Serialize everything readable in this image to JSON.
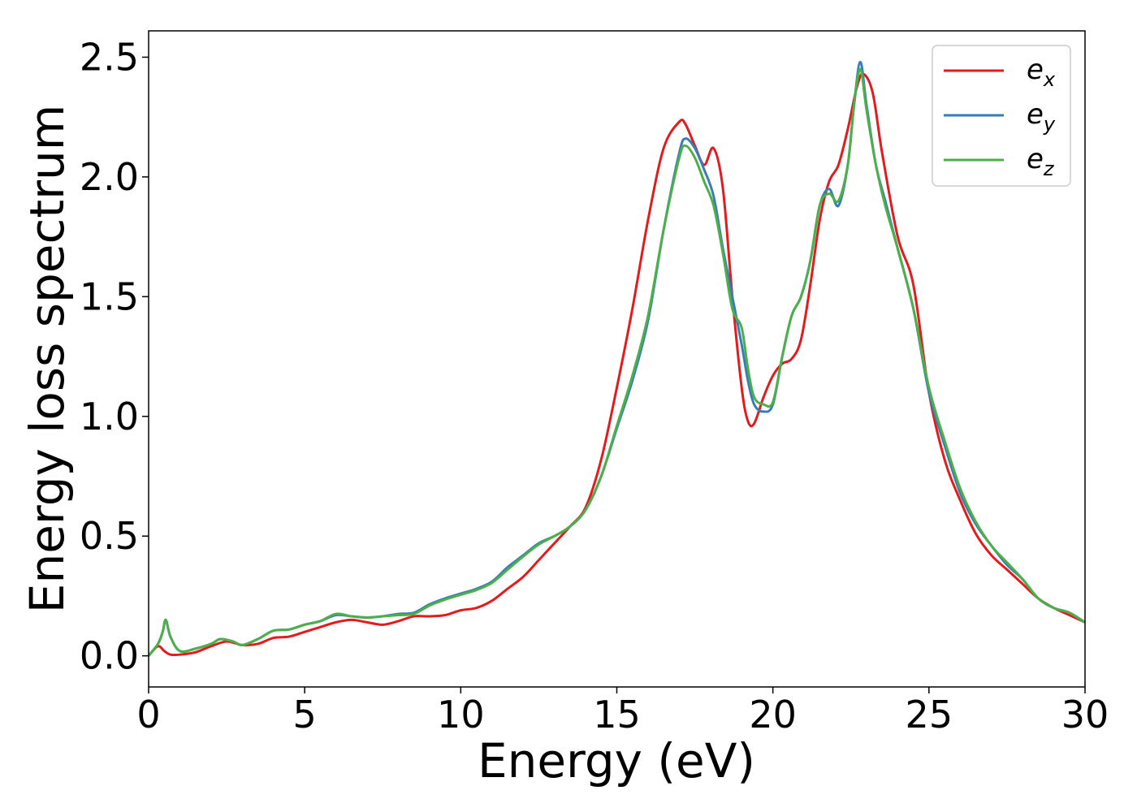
{
  "chart_data": {
    "type": "line",
    "xlabel": "Energy (eV)",
    "ylabel": "Energy loss spectrum",
    "xlim": [
      0,
      30
    ],
    "ylim": [
      -0.13,
      2.61
    ],
    "xticks": [
      "0",
      "5",
      "10",
      "15",
      "20",
      "25",
      "30"
    ],
    "yticks": [
      "0.0",
      "0.5",
      "1.0",
      "1.5",
      "2.0",
      "2.5"
    ],
    "grid": false,
    "legend_position": "top-right",
    "series": [
      {
        "name": "e",
        "subscript": "x",
        "color": "#e41a1c",
        "x": [
          0,
          0.3,
          0.5,
          0.7,
          1,
          1.5,
          2,
          2.5,
          3,
          3.5,
          4,
          4.5,
          5,
          5.5,
          6,
          6.5,
          7,
          7.5,
          8,
          8.5,
          9,
          9.5,
          10,
          10.5,
          11,
          11.5,
          12,
          12.5,
          13,
          13.5,
          14,
          14.5,
          15,
          15.5,
          16,
          16.5,
          17,
          17.2,
          17.5,
          17.8,
          18.1,
          18.4,
          18.7,
          19,
          19.2,
          19.4,
          19.7,
          20,
          20.3,
          20.6,
          20.9,
          21.2,
          21.5,
          21.8,
          22.1,
          22.4,
          22.7,
          22.9,
          23.2,
          23.5,
          24,
          24.5,
          25,
          25.5,
          26,
          26.5,
          27,
          27.5,
          28,
          28.5,
          29,
          29.5,
          30
        ],
        "y": [
          0.0,
          0.04,
          0.02,
          0.005,
          0.005,
          0.015,
          0.04,
          0.06,
          0.045,
          0.05,
          0.075,
          0.08,
          0.1,
          0.12,
          0.14,
          0.15,
          0.14,
          0.13,
          0.145,
          0.165,
          0.165,
          0.17,
          0.19,
          0.2,
          0.23,
          0.28,
          0.33,
          0.4,
          0.47,
          0.54,
          0.62,
          0.82,
          1.12,
          1.45,
          1.82,
          2.12,
          2.23,
          2.22,
          2.13,
          2.05,
          2.12,
          1.95,
          1.5,
          1.12,
          0.98,
          0.97,
          1.08,
          1.17,
          1.22,
          1.24,
          1.32,
          1.55,
          1.82,
          1.98,
          2.05,
          2.2,
          2.38,
          2.43,
          2.35,
          2.1,
          1.75,
          1.55,
          1.1,
          0.82,
          0.65,
          0.51,
          0.42,
          0.36,
          0.3,
          0.24,
          0.2,
          0.17,
          0.14
        ]
      },
      {
        "name": "e",
        "subscript": "y",
        "color": "#377eb8",
        "x": [
          0,
          0.3,
          0.45,
          0.55,
          0.7,
          1,
          1.5,
          2,
          2.3,
          2.7,
          3,
          3.5,
          4,
          4.5,
          5,
          5.5,
          6,
          6.5,
          7,
          7.5,
          8,
          8.5,
          9,
          9.5,
          10,
          10.5,
          11,
          11.5,
          12,
          12.5,
          13,
          13.5,
          14,
          14.5,
          15,
          15.5,
          16,
          16.5,
          17,
          17.2,
          17.5,
          17.8,
          18.1,
          18.4,
          18.7,
          19,
          19.2,
          19.4,
          19.7,
          20,
          20.3,
          20.6,
          20.9,
          21.2,
          21.5,
          21.8,
          22.1,
          22.4,
          22.6,
          22.8,
          23,
          23.3,
          23.6,
          24,
          24.5,
          25,
          25.5,
          26,
          26.5,
          27,
          27.5,
          28,
          28.5,
          29,
          29.5,
          30
        ],
        "y": [
          0.0,
          0.05,
          0.1,
          0.15,
          0.08,
          0.02,
          0.03,
          0.05,
          0.07,
          0.06,
          0.045,
          0.07,
          0.105,
          0.11,
          0.13,
          0.145,
          0.17,
          0.165,
          0.16,
          0.165,
          0.175,
          0.18,
          0.215,
          0.24,
          0.26,
          0.28,
          0.31,
          0.37,
          0.42,
          0.47,
          0.5,
          0.54,
          0.61,
          0.75,
          0.95,
          1.15,
          1.4,
          1.78,
          2.1,
          2.16,
          2.12,
          2.03,
          1.92,
          1.7,
          1.5,
          1.3,
          1.15,
          1.05,
          1.02,
          1.05,
          1.25,
          1.42,
          1.5,
          1.65,
          1.88,
          1.95,
          1.88,
          2.05,
          2.3,
          2.48,
          2.3,
          2.05,
          1.9,
          1.7,
          1.45,
          1.1,
          0.88,
          0.68,
          0.55,
          0.46,
          0.38,
          0.32,
          0.24,
          0.2,
          0.18,
          0.14
        ]
      },
      {
        "name": "e",
        "subscript": "z",
        "color": "#4daf4a",
        "x": [
          0,
          0.3,
          0.45,
          0.55,
          0.7,
          1,
          1.5,
          2,
          2.3,
          2.7,
          3,
          3.5,
          4,
          4.5,
          5,
          5.5,
          6,
          6.5,
          7,
          7.5,
          8,
          8.5,
          9,
          9.5,
          10,
          10.5,
          11,
          11.5,
          12,
          12.5,
          13,
          13.5,
          14,
          14.5,
          15,
          15.5,
          16,
          16.5,
          17,
          17.2,
          17.5,
          17.8,
          18.1,
          18.4,
          18.7,
          19,
          19.2,
          19.4,
          19.7,
          20,
          20.3,
          20.6,
          20.9,
          21.2,
          21.5,
          21.8,
          22.1,
          22.4,
          22.6,
          22.8,
          23,
          23.3,
          23.6,
          24,
          24.5,
          25,
          25.5,
          26,
          26.5,
          27,
          27.5,
          28,
          28.5,
          29,
          29.5,
          30
        ],
        "y": [
          0.0,
          0.05,
          0.1,
          0.15,
          0.08,
          0.02,
          0.03,
          0.05,
          0.07,
          0.06,
          0.045,
          0.07,
          0.105,
          0.11,
          0.13,
          0.145,
          0.175,
          0.165,
          0.16,
          0.165,
          0.17,
          0.175,
          0.21,
          0.235,
          0.255,
          0.275,
          0.305,
          0.36,
          0.415,
          0.465,
          0.5,
          0.54,
          0.61,
          0.75,
          0.96,
          1.17,
          1.42,
          1.78,
          2.08,
          2.13,
          2.08,
          1.98,
          1.88,
          1.68,
          1.45,
          1.37,
          1.2,
          1.08,
          1.05,
          1.06,
          1.25,
          1.42,
          1.5,
          1.65,
          1.88,
          1.93,
          1.9,
          2.05,
          2.3,
          2.45,
          2.28,
          2.05,
          1.88,
          1.7,
          1.45,
          1.12,
          0.9,
          0.7,
          0.56,
          0.46,
          0.39,
          0.32,
          0.24,
          0.2,
          0.18,
          0.14
        ]
      }
    ]
  }
}
